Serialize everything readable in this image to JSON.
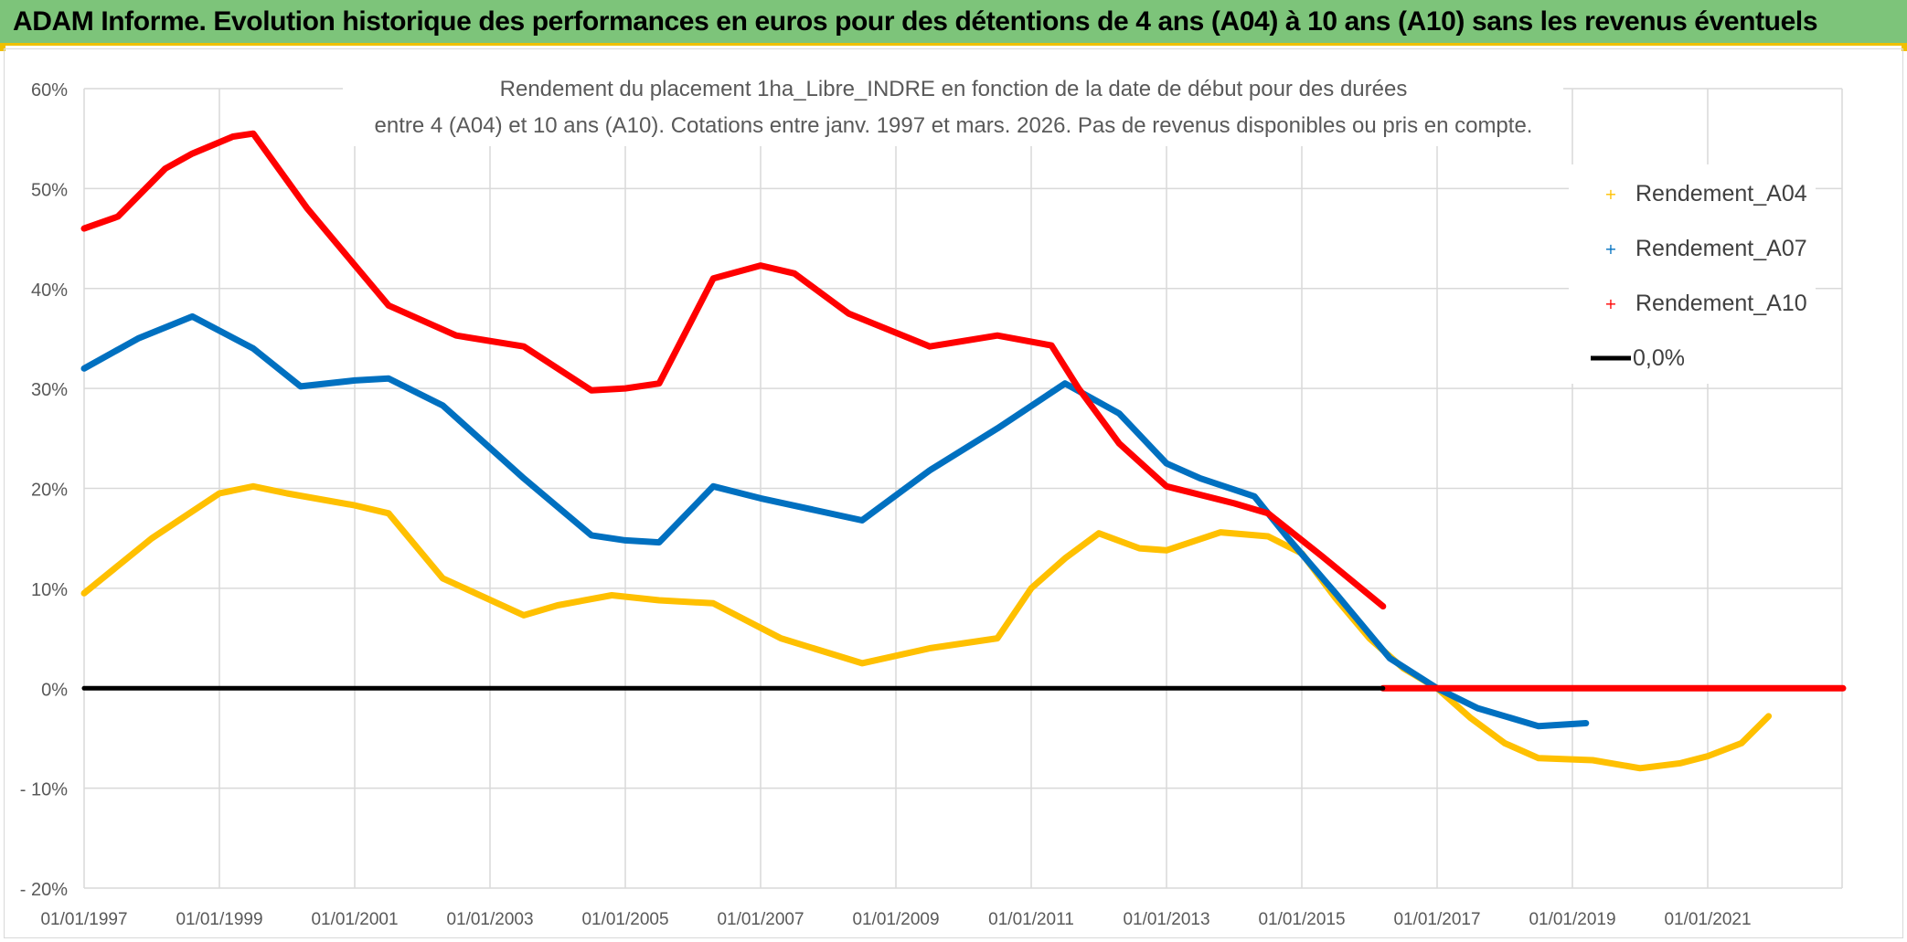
{
  "banner": {
    "title": "ADAM Informe. Evolution historique des performances en euros pour des détentions de 4 ans (A04) à 10 ans (A10) sans les revenus éventuels"
  },
  "colors": {
    "banner_bg": "#7dc47a",
    "banner_border": "#f0c000",
    "A04": "#ffc000",
    "A07": "#0070c0",
    "A10": "#ff0000",
    "zero": "#000000",
    "grid": "#d9d9d9"
  },
  "chart_data": {
    "type": "line",
    "title_line1": "Rendement du placement 1ha_Libre_INDRE en fonction de la date de début pour des durées",
    "title_line2": "entre 4 (A04) et 10 ans (A10). Cotations entre janv. 1997 et mars. 2026. Pas de revenus disponibles ou pris en compte.",
    "x_axis": {
      "min_year": 1997.0,
      "max_year": 2023.0,
      "tick_years": [
        1997,
        1999,
        2001,
        2003,
        2005,
        2007,
        2009,
        2011,
        2013,
        2015,
        2017,
        2019,
        2021
      ],
      "tick_labels": [
        "01/01/1997",
        "01/01/1999",
        "01/01/2001",
        "01/01/2003",
        "01/01/2005",
        "01/01/2007",
        "01/01/2009",
        "01/01/2011",
        "01/01/2013",
        "01/01/2015",
        "01/01/2017",
        "01/01/2019",
        "01/01/2021"
      ]
    },
    "y_axis": {
      "min": -20,
      "max": 60,
      "ticks": [
        60,
        50,
        40,
        30,
        20,
        10,
        0,
        -10,
        -20
      ],
      "tick_labels": [
        "60%",
        "50%",
        "40%",
        "30%",
        "20%",
        "10%",
        "0%",
        "- 10%",
        "- 20%"
      ]
    },
    "series": [
      {
        "name": "Rendement_A04",
        "color_key": "A04",
        "points": [
          [
            1997.0,
            9.5
          ],
          [
            1998.0,
            15.0
          ],
          [
            1999.0,
            19.5
          ],
          [
            1999.5,
            20.2
          ],
          [
            2000.0,
            19.5
          ],
          [
            2001.0,
            18.3
          ],
          [
            2001.5,
            17.5
          ],
          [
            2002.3,
            11.0
          ],
          [
            2003.5,
            7.3
          ],
          [
            2004.0,
            8.3
          ],
          [
            2004.8,
            9.3
          ],
          [
            2005.5,
            8.8
          ],
          [
            2006.3,
            8.5
          ],
          [
            2007.3,
            5.0
          ],
          [
            2008.5,
            2.5
          ],
          [
            2009.5,
            4.0
          ],
          [
            2010.5,
            5.0
          ],
          [
            2011.0,
            10.0
          ],
          [
            2011.5,
            13.0
          ],
          [
            2012.0,
            15.5
          ],
          [
            2012.6,
            14.0
          ],
          [
            2013.0,
            13.8
          ],
          [
            2013.8,
            15.6
          ],
          [
            2014.5,
            15.2
          ],
          [
            2015.0,
            13.5
          ],
          [
            2015.5,
            9.0
          ],
          [
            2016.0,
            5.0
          ],
          [
            2016.5,
            2.0
          ],
          [
            2017.0,
            0.0
          ],
          [
            2017.5,
            -3.0
          ],
          [
            2018.0,
            -5.5
          ],
          [
            2018.5,
            -7.0
          ],
          [
            2019.3,
            -7.2
          ],
          [
            2020.0,
            -8.0
          ],
          [
            2020.6,
            -7.5
          ],
          [
            2021.0,
            -6.8
          ],
          [
            2021.5,
            -5.5
          ],
          [
            2021.9,
            -2.8
          ]
        ]
      },
      {
        "name": "Rendement_A07",
        "color_key": "A07",
        "points": [
          [
            1997.0,
            32.0
          ],
          [
            1997.8,
            35.0
          ],
          [
            1998.6,
            37.2
          ],
          [
            1999.5,
            34.0
          ],
          [
            2000.2,
            30.2
          ],
          [
            2001.0,
            30.8
          ],
          [
            2001.5,
            31.0
          ],
          [
            2002.3,
            28.3
          ],
          [
            2003.5,
            21.0
          ],
          [
            2004.5,
            15.3
          ],
          [
            2005.0,
            14.8
          ],
          [
            2005.5,
            14.6
          ],
          [
            2006.3,
            20.2
          ],
          [
            2007.0,
            19.0
          ],
          [
            2008.5,
            16.8
          ],
          [
            2009.5,
            21.8
          ],
          [
            2010.5,
            26.0
          ],
          [
            2011.5,
            30.5
          ],
          [
            2012.3,
            27.5
          ],
          [
            2013.0,
            22.5
          ],
          [
            2013.5,
            21.0
          ],
          [
            2014.3,
            19.2
          ],
          [
            2014.8,
            15.0
          ],
          [
            2015.5,
            9.5
          ],
          [
            2016.3,
            3.0
          ],
          [
            2017.0,
            0.0
          ],
          [
            2017.6,
            -2.0
          ],
          [
            2018.5,
            -3.8
          ],
          [
            2019.2,
            -3.5
          ]
        ]
      },
      {
        "name": "Rendement_A10",
        "color_key": "A10",
        "points": [
          [
            1997.0,
            46.0
          ],
          [
            1997.5,
            47.2
          ],
          [
            1998.2,
            52.0
          ],
          [
            1998.6,
            53.5
          ],
          [
            1999.2,
            55.2
          ],
          [
            1999.5,
            55.5
          ],
          [
            2000.3,
            48.0
          ],
          [
            2001.5,
            38.3
          ],
          [
            2002.5,
            35.3
          ],
          [
            2003.5,
            34.2
          ],
          [
            2004.5,
            29.8
          ],
          [
            2005.0,
            30.0
          ],
          [
            2005.5,
            30.5
          ],
          [
            2006.3,
            41.0
          ],
          [
            2007.0,
            42.3
          ],
          [
            2007.5,
            41.5
          ],
          [
            2008.3,
            37.5
          ],
          [
            2009.5,
            34.2
          ],
          [
            2010.5,
            35.3
          ],
          [
            2011.3,
            34.3
          ],
          [
            2011.7,
            30.0
          ],
          [
            2012.3,
            24.5
          ],
          [
            2013.0,
            20.2
          ],
          [
            2014.0,
            18.5
          ],
          [
            2014.5,
            17.5
          ],
          [
            2015.3,
            13.2
          ],
          [
            2016.2,
            8.2
          ]
        ]
      },
      {
        "name": "Rendement_A10_zero_tail",
        "color_key": "A10",
        "points": [
          [
            2016.2,
            0.0
          ],
          [
            2023.0,
            0.0
          ]
        ]
      },
      {
        "name": "0,0%",
        "color_key": "zero",
        "points": [
          [
            1997.0,
            0.0
          ],
          [
            2016.2,
            0.0
          ]
        ]
      }
    ],
    "legend": {
      "placement": "right",
      "items": [
        {
          "label": "Rendement_A04",
          "color_key": "A04",
          "marker": "plus"
        },
        {
          "label": "Rendement_A07",
          "color_key": "A07",
          "marker": "plus"
        },
        {
          "label": "Rendement_A10",
          "color_key": "A10",
          "marker": "plus"
        },
        {
          "label": "0,0%",
          "color_key": "zero",
          "marker": "line"
        }
      ]
    }
  }
}
